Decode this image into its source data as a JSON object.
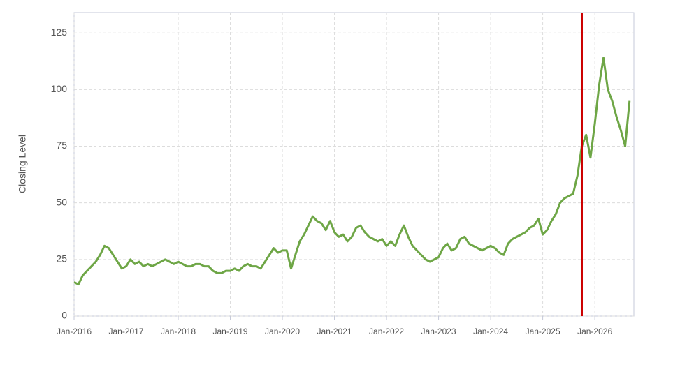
{
  "chart_data": {
    "type": "line",
    "y_label": "Closing Level",
    "color": "#6ea646",
    "grid": true,
    "ylim": [
      0,
      134
    ],
    "yticks": [
      0,
      25,
      50,
      75,
      100,
      125
    ],
    "xlim": [
      "2016-01",
      "2026-10"
    ],
    "xticks": [
      {
        "value": "2016-01",
        "label": "Jan-2016"
      },
      {
        "value": "2017-01",
        "label": "Jan-2017"
      },
      {
        "value": "2018-01",
        "label": "Jan-2018"
      },
      {
        "value": "2019-01",
        "label": "Jan-2019"
      },
      {
        "value": "2020-01",
        "label": "Jan-2020"
      },
      {
        "value": "2021-01",
        "label": "Jan-2021"
      },
      {
        "value": "2022-01",
        "label": "Jan-2022"
      },
      {
        "value": "2023-01",
        "label": "Jan-2023"
      },
      {
        "value": "2024-01",
        "label": "Jan-2024"
      },
      {
        "value": "2025-01",
        "label": "Jan-2025"
      },
      {
        "value": "2026-01",
        "label": "Jan-2026"
      }
    ],
    "vline": {
      "x": "2025-10",
      "color": "#cc0000"
    },
    "x": [
      "2016-01",
      "2016-02",
      "2016-03",
      "2016-04",
      "2016-05",
      "2016-06",
      "2016-07",
      "2016-08",
      "2016-09",
      "2016-10",
      "2016-11",
      "2016-12",
      "2017-01",
      "2017-02",
      "2017-03",
      "2017-04",
      "2017-05",
      "2017-06",
      "2017-07",
      "2017-08",
      "2017-09",
      "2017-10",
      "2017-11",
      "2017-12",
      "2018-01",
      "2018-02",
      "2018-03",
      "2018-04",
      "2018-05",
      "2018-06",
      "2018-07",
      "2018-08",
      "2018-09",
      "2018-10",
      "2018-11",
      "2018-12",
      "2019-01",
      "2019-02",
      "2019-03",
      "2019-04",
      "2019-05",
      "2019-06",
      "2019-07",
      "2019-08",
      "2019-09",
      "2019-10",
      "2019-11",
      "2019-12",
      "2020-01",
      "2020-02",
      "2020-03",
      "2020-04",
      "2020-05",
      "2020-06",
      "2020-07",
      "2020-08",
      "2020-09",
      "2020-10",
      "2020-11",
      "2020-12",
      "2021-01",
      "2021-02",
      "2021-03",
      "2021-04",
      "2021-05",
      "2021-06",
      "2021-07",
      "2021-08",
      "2021-09",
      "2021-10",
      "2021-11",
      "2021-12",
      "2022-01",
      "2022-02",
      "2022-03",
      "2022-04",
      "2022-05",
      "2022-06",
      "2022-07",
      "2022-08",
      "2022-09",
      "2022-10",
      "2022-11",
      "2022-12",
      "2023-01",
      "2023-02",
      "2023-03",
      "2023-04",
      "2023-05",
      "2023-06",
      "2023-07",
      "2023-08",
      "2023-09",
      "2023-10",
      "2023-11",
      "2023-12",
      "2024-01",
      "2024-02",
      "2024-03",
      "2024-04",
      "2024-05",
      "2024-06",
      "2024-07",
      "2024-08",
      "2024-09",
      "2024-10",
      "2024-11",
      "2024-12",
      "2025-01",
      "2025-02",
      "2025-03",
      "2025-04",
      "2025-05",
      "2025-06",
      "2025-07",
      "2025-08",
      "2025-09",
      "2025-10",
      "2025-11",
      "2025-12",
      "2026-01",
      "2026-02",
      "2026-03",
      "2026-04",
      "2026-05",
      "2026-06",
      "2026-07",
      "2026-08",
      "2026-09"
    ],
    "values": [
      15,
      14,
      18,
      20,
      22,
      24,
      27,
      31,
      30,
      27,
      24,
      21,
      22,
      25,
      23,
      24,
      22,
      23,
      22,
      23,
      24,
      25,
      24,
      23,
      24,
      23,
      22,
      22,
      23,
      23,
      22,
      22,
      20,
      19,
      19,
      20,
      20,
      21,
      20,
      22,
      23,
      22,
      22,
      21,
      24,
      27,
      30,
      28,
      29,
      29,
      21,
      27,
      33,
      36,
      40,
      44,
      42,
      41,
      38,
      42,
      37,
      35,
      36,
      33,
      35,
      39,
      40,
      37,
      35,
      34,
      33,
      34,
      31,
      33,
      31,
      36,
      40,
      35,
      31,
      29,
      27,
      25,
      24,
      25,
      26,
      30,
      32,
      29,
      30,
      34,
      35,
      32,
      31,
      30,
      29,
      30,
      31,
      30,
      28,
      27,
      32,
      34,
      35,
      36,
      37,
      39,
      40,
      43,
      36,
      38,
      42,
      45,
      50,
      52,
      53,
      54,
      62,
      75,
      80,
      70,
      85,
      102,
      114,
      100,
      95,
      88,
      82,
      75,
      95
    ]
  }
}
